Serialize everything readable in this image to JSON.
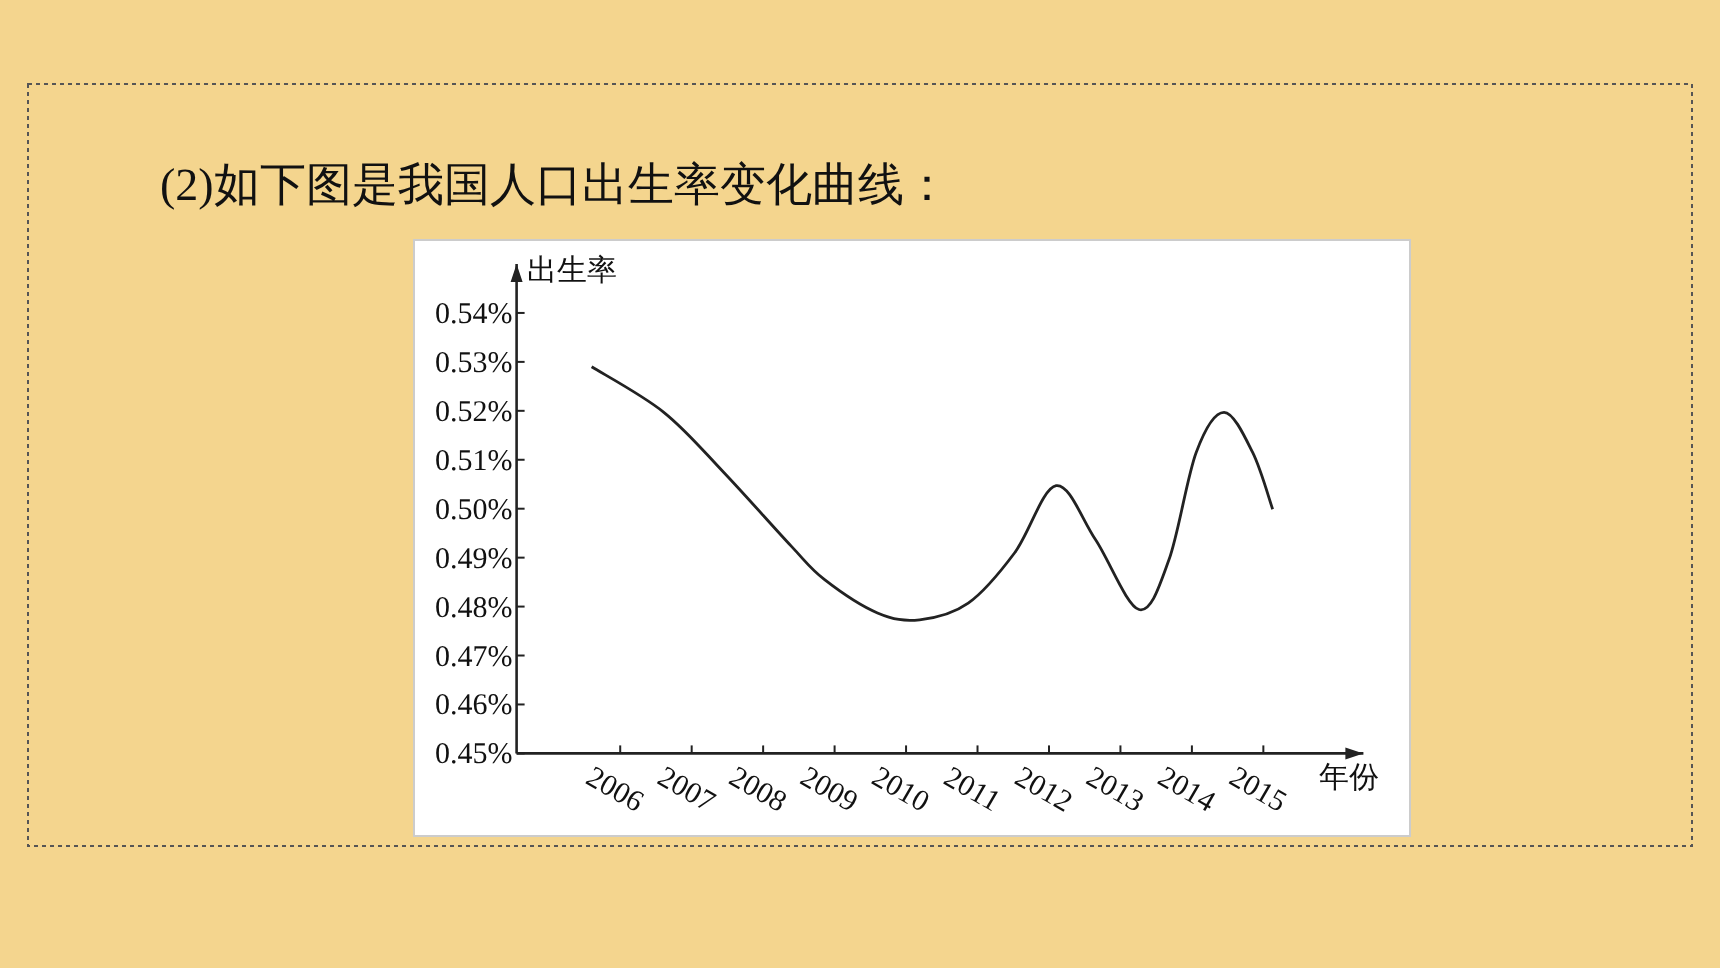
{
  "chart_data": {
    "type": "line",
    "title": "(2)如下图是我国人口出生率变化曲线：",
    "xlabel": "年份",
    "ylabel": "出生率",
    "xlim": [
      2004.55,
      2016.4
    ],
    "ylim": [
      0.45,
      0.55
    ],
    "xticks": [
      2006,
      2007,
      2008,
      2009,
      2010,
      2011,
      2012,
      2013,
      2014,
      2015
    ],
    "yticks": [
      {
        "value": 0.45,
        "label": "0.45%"
      },
      {
        "value": 0.46,
        "label": "0.46%"
      },
      {
        "value": 0.47,
        "label": "0.47%"
      },
      {
        "value": 0.48,
        "label": "0.48%"
      },
      {
        "value": 0.49,
        "label": "0.49%"
      },
      {
        "value": 0.5,
        "label": "0.50%"
      },
      {
        "value": 0.51,
        "label": "0.51%"
      },
      {
        "value": 0.52,
        "label": "0.52%"
      },
      {
        "value": 0.53,
        "label": "0.53%"
      },
      {
        "value": 0.54,
        "label": "0.54%"
      }
    ],
    "x": [
      2005.6,
      2006.61,
      2007.45,
      2008.39,
      2008.86,
      2009.6,
      2010.19,
      2010.87,
      2011.52,
      2012.1,
      2012.65,
      2013.26,
      2013.68,
      2014.06,
      2014.45,
      2014.85,
      2015.13
    ],
    "values": [
      0.529,
      0.5197,
      0.5074,
      0.4924,
      0.4855,
      0.4787,
      0.4773,
      0.4807,
      0.491,
      0.5047,
      0.4937,
      0.4794,
      0.4896,
      0.5115,
      0.5197,
      0.5115,
      0.4999
    ],
    "color": "#222222"
  }
}
